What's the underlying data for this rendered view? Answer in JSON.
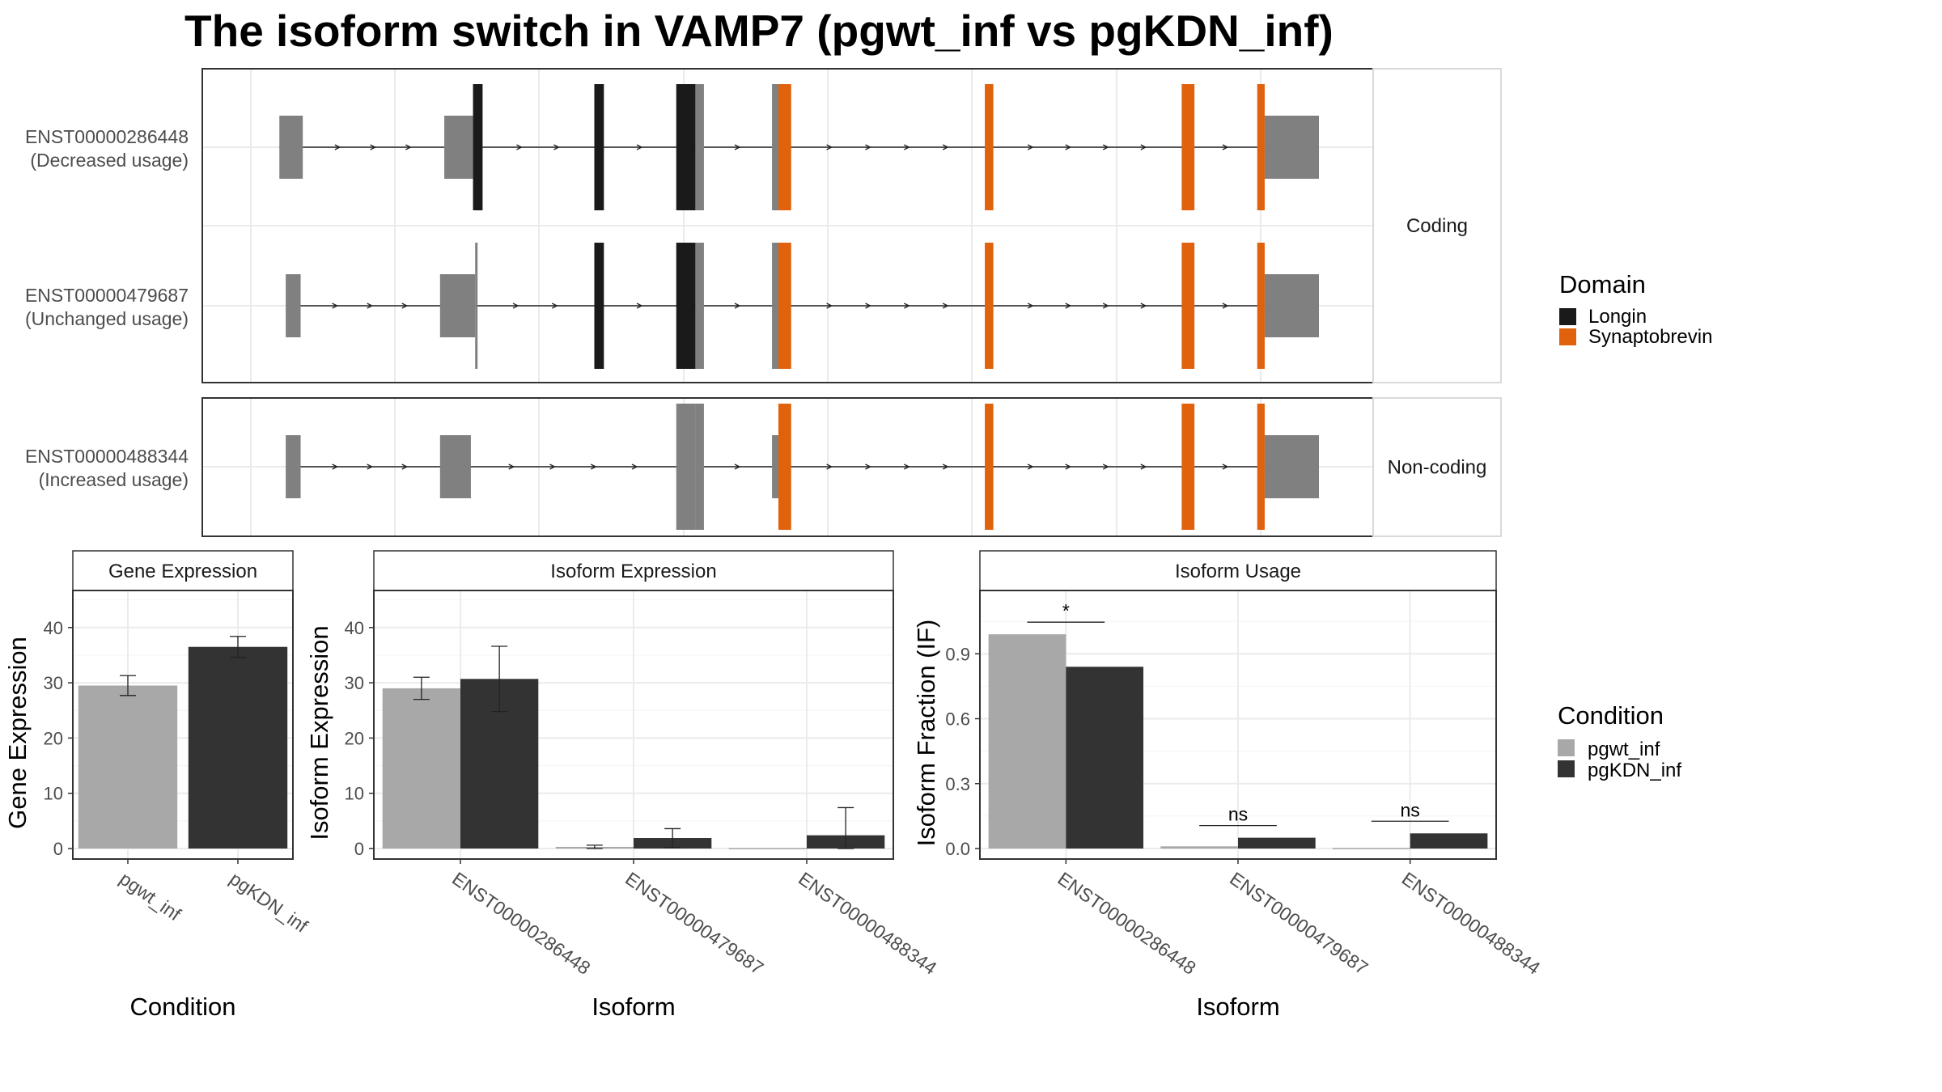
{
  "title": "The isoform switch in VAMP7 (pgwt_inf vs pgKDN_inf)",
  "colors": {
    "longin": "#1a1a1a",
    "synaptobrevin": "#e0620d",
    "utr_grey": "#808080",
    "pgwt_inf": "#a8a8a8",
    "pgKDN_inf": "#333333"
  },
  "structure": {
    "genomic_domain": [
      0,
      100
    ],
    "facets": [
      {
        "label": "Coding",
        "isoforms": [
          {
            "id": "ENST00000286448",
            "usage": "(Decreased usage)",
            "exons": [
              {
                "s": 2.3,
                "e": 4.5,
                "type": "utr"
              },
              {
                "s": 17.8,
                "e": 20.5,
                "type": "utr"
              },
              {
                "s": 20.5,
                "e": 21.4,
                "type": "longin"
              },
              {
                "s": 31.9,
                "e": 32.8,
                "type": "longin"
              },
              {
                "s": 39.6,
                "e": 41.4,
                "type": "longin"
              },
              {
                "s": 41.4,
                "e": 42.2,
                "type": "cds"
              },
              {
                "s": 48.6,
                "e": 49.2,
                "type": "cds"
              },
              {
                "s": 49.2,
                "e": 50.4,
                "type": "synaptobrevin"
              },
              {
                "s": 68.6,
                "e": 69.4,
                "type": "synaptobrevin"
              },
              {
                "s": 87.1,
                "e": 88.3,
                "type": "synaptobrevin"
              },
              {
                "s": 94.2,
                "e": 94.9,
                "type": "synaptobrevin"
              },
              {
                "s": 94.9,
                "e": 100,
                "type": "utr"
              }
            ]
          },
          {
            "id": "ENST00000479687",
            "usage": "(Unchanged usage)",
            "exons": [
              {
                "s": 2.9,
                "e": 4.3,
                "type": "utr"
              },
              {
                "s": 17.4,
                "e": 20.7,
                "type": "utr"
              },
              {
                "s": 20.7,
                "e": 20.9,
                "type": "cds"
              },
              {
                "s": 31.9,
                "e": 32.8,
                "type": "longin"
              },
              {
                "s": 39.6,
                "e": 41.4,
                "type": "longin"
              },
              {
                "s": 41.4,
                "e": 42.2,
                "type": "cds"
              },
              {
                "s": 48.6,
                "e": 49.2,
                "type": "cds"
              },
              {
                "s": 49.2,
                "e": 50.4,
                "type": "synaptobrevin"
              },
              {
                "s": 68.6,
                "e": 69.4,
                "type": "synaptobrevin"
              },
              {
                "s": 87.1,
                "e": 88.3,
                "type": "synaptobrevin"
              },
              {
                "s": 94.2,
                "e": 94.9,
                "type": "synaptobrevin"
              },
              {
                "s": 94.9,
                "e": 100,
                "type": "utr"
              }
            ]
          }
        ]
      },
      {
        "label": "Non-coding",
        "isoforms": [
          {
            "id": "ENST00000488344",
            "usage": "(Increased usage)",
            "exons": [
              {
                "s": 2.9,
                "e": 4.3,
                "type": "utr"
              },
              {
                "s": 17.4,
                "e": 20.3,
                "type": "utr"
              },
              {
                "s": 39.6,
                "e": 41.4,
                "type": "utr"
              },
              {
                "s": 41.4,
                "e": 42.2,
                "type": "utr"
              },
              {
                "s": 48.6,
                "e": 49.2,
                "type": "utr"
              },
              {
                "s": 49.2,
                "e": 50.4,
                "type": "synaptobrevin"
              },
              {
                "s": 68.6,
                "e": 69.4,
                "type": "synaptobrevin"
              },
              {
                "s": 87.1,
                "e": 88.3,
                "type": "synaptobrevin"
              },
              {
                "s": 94.2,
                "e": 94.9,
                "type": "synaptobrevin"
              },
              {
                "s": 94.9,
                "e": 100,
                "type": "utr"
              }
            ]
          }
        ]
      }
    ]
  },
  "legends": {
    "domain": {
      "title": "Domain",
      "items": [
        {
          "label": "Longin",
          "color": "#1a1a1a"
        },
        {
          "label": "Synaptobrevin",
          "color": "#e0620d"
        }
      ]
    },
    "condition": {
      "title": "Condition",
      "items": [
        {
          "label": "pgwt_inf",
          "color": "#a8a8a8"
        },
        {
          "label": "pgKDN_inf",
          "color": "#333333"
        }
      ]
    }
  },
  "chart_data": [
    {
      "type": "bar",
      "title": "Gene Expression",
      "xlabel": "Condition",
      "ylabel": "Gene Expression",
      "ylim": [
        0,
        47
      ],
      "yticks": [
        0,
        10,
        20,
        30,
        40
      ],
      "categories": [
        "pgwt_inf",
        "pgKDN_inf"
      ],
      "series": [
        {
          "values": [
            29.5,
            36.5
          ],
          "error": [
            1.8,
            1.9
          ]
        }
      ]
    },
    {
      "type": "bar",
      "title": "Isoform Expression",
      "xlabel": "Isoform",
      "ylabel": "Isoform Expression",
      "ylim": [
        0,
        47
      ],
      "yticks": [
        0,
        10,
        20,
        30,
        40
      ],
      "categories": [
        "ENST00000286448",
        "ENST00000479687",
        "ENST00000488344"
      ],
      "series": [
        {
          "name": "pgwt_inf",
          "values": [
            29.0,
            0.3,
            0.1
          ],
          "error": [
            2.0,
            0.3,
            0
          ]
        },
        {
          "name": "pgKDN_inf",
          "values": [
            30.7,
            1.9,
            2.4
          ],
          "error": [
            5.9,
            1.7,
            5.0
          ]
        }
      ]
    },
    {
      "type": "bar",
      "title": "Isoform Usage",
      "xlabel": "Isoform",
      "ylabel": "Isoform Fraction (IF)",
      "ylim": [
        0,
        1.2
      ],
      "yticks": [
        "0.0",
        "0.3",
        "0.6",
        "0.9"
      ],
      "categories": [
        "ENST00000286448",
        "ENST00000479687",
        "ENST00000488344"
      ],
      "series": [
        {
          "name": "pgwt_inf",
          "values": [
            0.99,
            0.01,
            0.003
          ]
        },
        {
          "name": "pgKDN_inf",
          "values": [
            0.84,
            0.05,
            0.07
          ]
        }
      ],
      "significance": [
        "*",
        "ns",
        "ns"
      ]
    }
  ]
}
